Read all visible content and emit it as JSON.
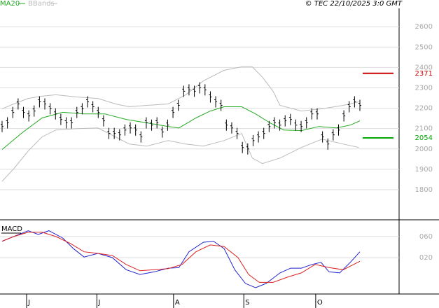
{
  "copyright": "© TEC 22/10/2025 3:0 GMT",
  "chart_data": [
    {
      "type": "price",
      "xlim": [
        0,
        67.2
      ],
      "ylim": [
        1652,
        2690
      ],
      "yticks": [
        1800,
        1900,
        2000,
        2100,
        2200,
        2300,
        2400,
        2500,
        2600
      ],
      "grid": true,
      "close": {
        "color": "#000000",
        "values": [
          2110,
          2128,
          2179,
          2221,
          2179,
          2162,
          2186,
          2231,
          2221,
          2197,
          2172,
          2145,
          2128,
          2128,
          2179,
          2197,
          2231,
          2207,
          2179,
          2138,
          2076,
          2076,
          2069,
          2093,
          2103,
          2093,
          2059,
          2128,
          2117,
          2128,
          2083,
          2117,
          2179,
          2214,
          2283,
          2290,
          2283,
          2300,
          2290,
          2255,
          2231,
          2214,
          2117,
          2103,
          2076,
          2007,
          2000,
          2041,
          2059,
          2076,
          2110,
          2128,
          2117,
          2138,
          2145,
          2117,
          2110,
          2128,
          2172,
          2172,
          2059,
          2024,
          2069,
          2093,
          2162,
          2207,
          2231,
          2214
        ]
      },
      "series": [
        {
          "name": "MA20",
          "color": "#22aa22",
          "x": [
            0,
            3.6,
            7.5,
            11.4,
            15.4,
            19.3,
            23.3,
            27.2,
            31.2,
            33.2,
            36.4,
            39.1,
            41.7,
            45,
            47.6,
            50.3,
            52.9,
            56.2,
            59.5,
            62.8,
            65.4,
            67.2
          ],
          "values": [
            1997,
            2076,
            2152,
            2180,
            2172,
            2172,
            2145,
            2128,
            2110,
            2103,
            2152,
            2186,
            2207,
            2207,
            2172,
            2128,
            2093,
            2090,
            2110,
            2103,
            2117,
            2138
          ]
        },
        {
          "name": "BBands",
          "color": "#bbbbbb",
          "x": [
            0,
            2.2,
            4.9,
            7.5,
            10.1,
            14.1,
            18,
            21.3,
            23.9,
            27.2,
            31.2,
            34.5,
            37.8,
            41.7,
            45,
            47,
            48.9,
            50.9,
            52.2,
            56.2,
            60.1,
            64.1,
            67
          ],
          "upper": [
            2197,
            2221,
            2248,
            2259,
            2266,
            2255,
            2248,
            2221,
            2207,
            2214,
            2221,
            2266,
            2334,
            2386,
            2403,
            2403,
            2352,
            2283,
            2214,
            2186,
            2197,
            2214,
            2231
          ],
          "lower": [
            1841,
            1903,
            1990,
            2059,
            2093,
            2100,
            2103,
            2059,
            2024,
            2014,
            2041,
            2024,
            2014,
            2041,
            2076,
            1955,
            1928,
            1945,
            1955,
            2007,
            2048,
            2024,
            2007
          ]
        }
      ],
      "levels": [
        {
          "value": 2371,
          "color": "#cc0000"
        },
        {
          "value": 2054,
          "color": "#00aa00"
        }
      ]
    },
    {
      "type": "macd",
      "title": "MACD",
      "xlim": [
        0,
        67.2
      ],
      "ylim": [
        -49,
        89
      ],
      "yticks": [
        {
          "value": 20,
          "label": "020"
        },
        {
          "value": 60,
          "label": "060"
        }
      ],
      "xticks": [
        {
          "value": 4.6,
          "label": "J"
        },
        {
          "value": 17.8,
          "label": "J"
        },
        {
          "value": 32.2,
          "label": "A"
        },
        {
          "value": 45.4,
          "label": "S"
        },
        {
          "value": 58.9,
          "label": "O"
        }
      ],
      "series": [
        {
          "color": "#2222cc",
          "x": [
            0,
            2.2,
            4.9,
            6.8,
            8.8,
            11.4,
            13.4,
            15.4,
            18,
            20.7,
            23.3,
            25.9,
            28.6,
            31.2,
            33.2,
            35.1,
            37.8,
            39.7,
            41.7,
            43.7,
            45.7,
            47.6,
            49.6,
            52.2,
            54.2,
            56.2,
            58.2,
            59.9,
            61.4,
            63.4,
            65.4,
            67.2
          ],
          "values": [
            51,
            60,
            71,
            64,
            71,
            57,
            37,
            21,
            28,
            20,
            -3,
            -12,
            -7,
            0,
            1,
            31,
            49,
            51,
            37,
            -3,
            -29,
            -37,
            -29,
            -9,
            0,
            0,
            7,
            11,
            -7,
            -9,
            11,
            31
          ]
        },
        {
          "color": "#dd2222",
          "x": [
            0,
            2.2,
            4.9,
            7.5,
            10.1,
            12.8,
            15.4,
            18,
            20.7,
            23.3,
            25.9,
            28.6,
            31.2,
            33.8,
            36.4,
            39.1,
            41.7,
            44.3,
            46.3,
            48.3,
            50.9,
            53.6,
            56.2,
            58.8,
            61.4,
            64.1,
            67.2
          ],
          "values": [
            51,
            60,
            68,
            68,
            60,
            47,
            31,
            28,
            24,
            7,
            -5,
            -3,
            -1,
            7,
            31,
            44,
            41,
            20,
            -12,
            -27,
            -27,
            -17,
            -9,
            7,
            1,
            -3,
            13
          ]
        }
      ]
    }
  ]
}
